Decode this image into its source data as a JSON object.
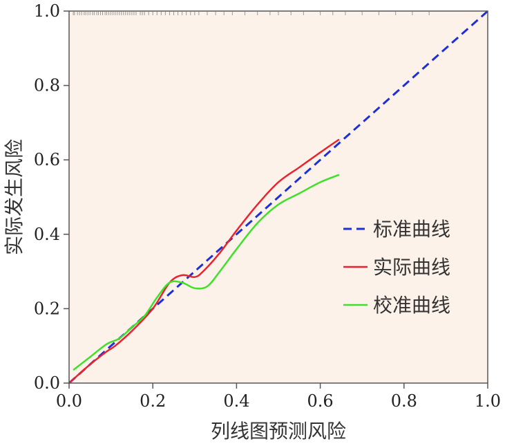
{
  "chart_data": {
    "type": "line",
    "title": "",
    "xlabel": "列线图预测风险",
    "ylabel": "实际发生风险",
    "xlim": [
      0,
      1
    ],
    "ylim": [
      0,
      1
    ],
    "xticks": [
      "0.0",
      "0.2",
      "0.4",
      "0.6",
      "0.8",
      "1.0"
    ],
    "yticks": [
      "0.0",
      "0.2",
      "0.4",
      "0.6",
      "0.8",
      "1.0"
    ],
    "grid": false,
    "legend_position": "right",
    "plot_background": "#fdf2ea",
    "rug_at_top": true,
    "series": [
      {
        "name": "标准曲线",
        "style": "dashed",
        "color": "#1f2fd8",
        "x": [
          0.0,
          1.0
        ],
        "y": [
          0.0,
          1.0
        ]
      },
      {
        "name": "实际曲线",
        "style": "solid",
        "color": "#e8252e",
        "x": [
          0.0,
          0.05,
          0.09,
          0.11,
          0.15,
          0.2,
          0.24,
          0.27,
          0.3,
          0.32,
          0.36,
          0.4,
          0.45,
          0.5,
          0.55,
          0.6,
          0.645
        ],
        "y": [
          0.0,
          0.05,
          0.085,
          0.1,
          0.14,
          0.2,
          0.27,
          0.29,
          0.285,
          0.3,
          0.35,
          0.41,
          0.48,
          0.54,
          0.58,
          0.62,
          0.655
        ]
      },
      {
        "name": "校准曲线",
        "style": "solid",
        "color": "#3ee02a",
        "x": [
          0.01,
          0.05,
          0.09,
          0.12,
          0.15,
          0.18,
          0.21,
          0.24,
          0.27,
          0.3,
          0.33,
          0.36,
          0.4,
          0.45,
          0.5,
          0.55,
          0.6,
          0.645
        ],
        "y": [
          0.035,
          0.07,
          0.105,
          0.12,
          0.15,
          0.18,
          0.23,
          0.27,
          0.27,
          0.255,
          0.26,
          0.3,
          0.36,
          0.43,
          0.48,
          0.51,
          0.54,
          0.56
        ]
      }
    ],
    "rug": [
      0.01,
      0.013,
      0.02,
      0.025,
      0.03,
      0.036,
      0.04,
      0.045,
      0.05,
      0.056,
      0.06,
      0.066,
      0.07,
      0.075,
      0.08,
      0.086,
      0.09,
      0.095,
      0.1,
      0.105,
      0.11,
      0.115,
      0.12,
      0.125,
      0.13,
      0.135,
      0.14,
      0.145,
      0.15,
      0.155,
      0.16,
      0.17,
      0.175,
      0.18,
      0.19,
      0.2,
      0.21,
      0.22,
      0.23,
      0.24,
      0.25,
      0.26,
      0.27,
      0.28,
      0.29,
      0.3,
      0.31,
      0.33,
      0.35,
      0.37,
      0.39,
      0.42,
      0.45,
      0.48,
      0.5,
      0.53,
      0.56,
      0.6,
      0.63,
      0.66,
      0.7,
      0.74,
      0.78,
      0.82,
      0.86
    ]
  }
}
